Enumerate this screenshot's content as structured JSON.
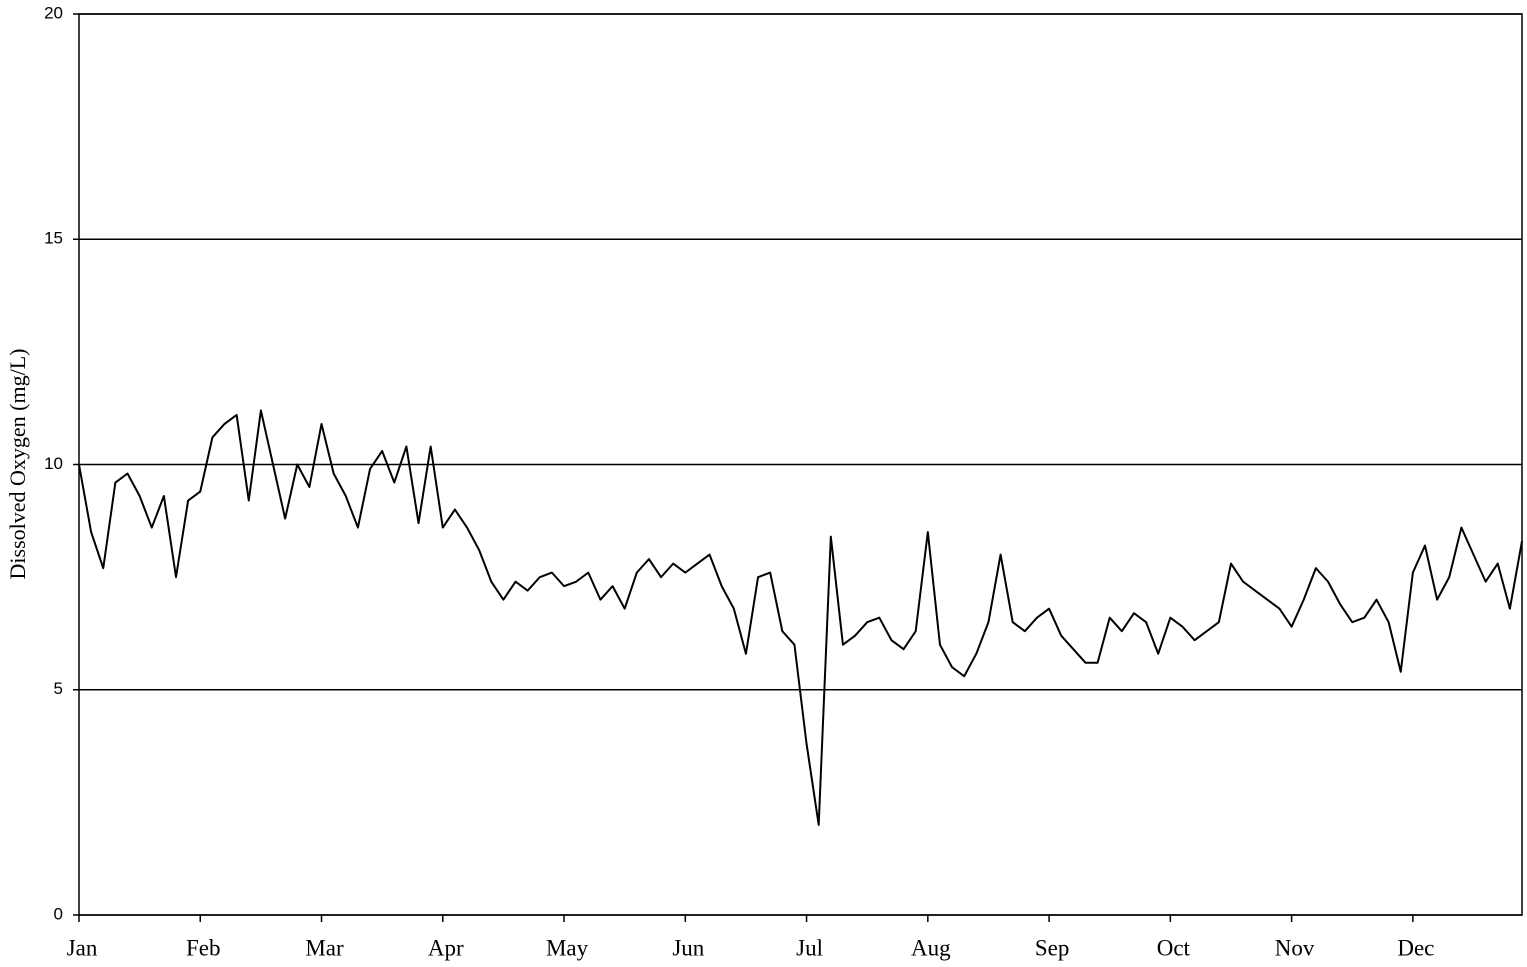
{
  "chart_data": {
    "type": "line",
    "y_label": "Dissolved Oxygen (mg/L)",
    "categories": [
      "Jan",
      null,
      null,
      null,
      null,
      null,
      null,
      null,
      null,
      null,
      "Feb",
      null,
      null,
      null,
      null,
      null,
      null,
      null,
      null,
      null,
      "Mar",
      null,
      null,
      null,
      null,
      null,
      null,
      null,
      null,
      null,
      "Apr",
      null,
      null,
      null,
      null,
      null,
      null,
      null,
      null,
      null,
      "May",
      null,
      null,
      null,
      null,
      null,
      null,
      null,
      null,
      null,
      "Jun",
      null,
      null,
      null,
      null,
      null,
      null,
      null,
      null,
      null,
      "Jul",
      null,
      null,
      null,
      null,
      null,
      null,
      null,
      null,
      null,
      "Aug",
      null,
      null,
      null,
      null,
      null,
      null,
      null,
      null,
      null,
      "Sep",
      null,
      null,
      null,
      null,
      null,
      null,
      null,
      null,
      null,
      "Oct",
      null,
      null,
      null,
      null,
      null,
      null,
      null,
      null,
      null,
      "Nov",
      null,
      null,
      null,
      null,
      null,
      null,
      null,
      null,
      null,
      "Dec",
      null,
      null,
      null,
      null,
      null,
      null,
      null,
      null,
      null
    ],
    "values": [
      10.0,
      8.5,
      7.7,
      9.6,
      9.8,
      9.3,
      8.6,
      9.3,
      7.5,
      9.2,
      9.4,
      10.6,
      10.9,
      11.1,
      9.2,
      11.2,
      10.0,
      8.8,
      10.0,
      9.5,
      10.9,
      9.8,
      9.3,
      8.6,
      9.9,
      10.3,
      9.6,
      10.4,
      8.7,
      10.4,
      8.6,
      9.0,
      8.6,
      8.1,
      7.4,
      7.0,
      7.4,
      7.2,
      7.5,
      7.6,
      7.3,
      7.4,
      7.6,
      7.0,
      7.3,
      6.8,
      7.6,
      7.9,
      7.5,
      7.8,
      7.6,
      7.8,
      8.0,
      7.3,
      6.8,
      5.8,
      7.5,
      7.6,
      6.3,
      6.0,
      3.8,
      2.0,
      8.4,
      6.0,
      6.2,
      6.5,
      6.6,
      6.1,
      5.9,
      6.3,
      8.5,
      6.0,
      5.5,
      5.3,
      5.8,
      6.5,
      8.0,
      6.5,
      6.3,
      6.6,
      6.8,
      6.2,
      5.9,
      5.6,
      5.6,
      6.6,
      6.3,
      6.7,
      6.5,
      5.8,
      6.6,
      6.4,
      6.1,
      6.3,
      6.5,
      7.8,
      7.4,
      7.2,
      7.0,
      6.8,
      6.4,
      7.0,
      7.7,
      7.4,
      6.9,
      6.5,
      6.6,
      7.0,
      6.5,
      5.4,
      7.6,
      8.2,
      7.0,
      7.5,
      8.6,
      8.0,
      7.4,
      7.8,
      6.8,
      8.3
    ],
    "color": "#000000",
    "ylim": [
      0,
      20
    ],
    "yticks": [
      0,
      5,
      10,
      15,
      20
    ],
    "grid": true
  }
}
